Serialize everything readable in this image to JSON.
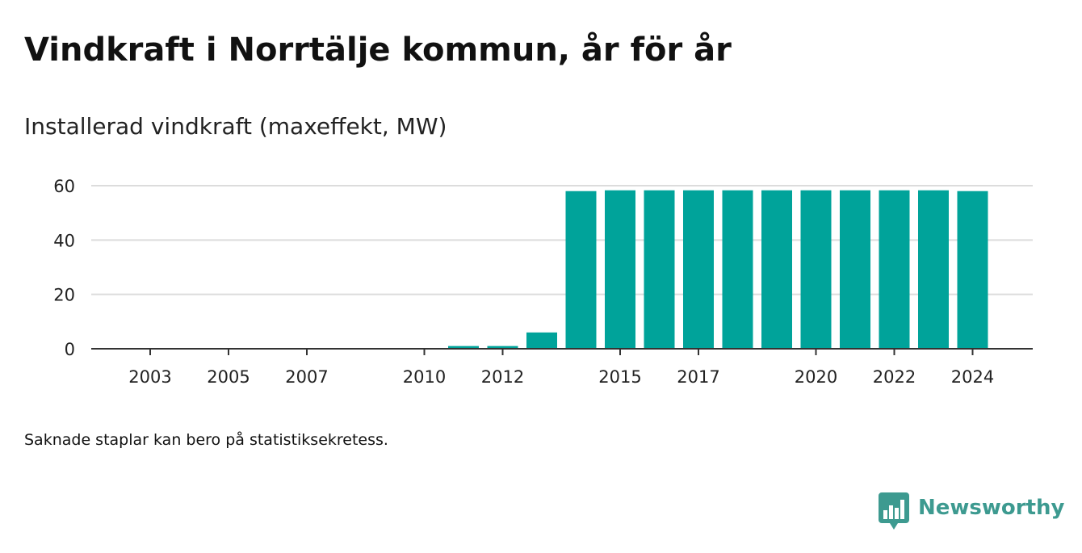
{
  "header": {
    "title": "Vindkraft i Norrtälje kommun, år för år",
    "subtitle": "Installerad vindkraft (maxeffekt, MW)"
  },
  "footnote": "Saknade staplar kan bero på statistiksekretess.",
  "brand": {
    "name": "Newsworthy",
    "color": "#3d9a90",
    "icon": "bar-chart-speech-bubble-icon"
  },
  "colors": {
    "bar": "#00a39a",
    "gridline": "#dcdcdc",
    "axis": "#333333"
  },
  "chart_data": {
    "type": "bar",
    "title": "Vindkraft i Norrtälje kommun, år för år",
    "subtitle": "Installerad vindkraft (maxeffekt, MW)",
    "xlabel": "",
    "ylabel": "",
    "categories": [
      2002,
      2003,
      2004,
      2005,
      2006,
      2007,
      2008,
      2009,
      2010,
      2011,
      2012,
      2013,
      2014,
      2015,
      2016,
      2017,
      2018,
      2019,
      2020,
      2021,
      2022,
      2023,
      2024
    ],
    "values": [
      0,
      0,
      0,
      0,
      0,
      0,
      0,
      0,
      0,
      1,
      1,
      6,
      58,
      58.3,
      58.3,
      58.3,
      58.3,
      58.3,
      58.3,
      58.3,
      58.3,
      58.3,
      58
    ],
    "x_tick_labels": [
      "2003",
      "2005",
      "2007",
      "2010",
      "2012",
      "2015",
      "2017",
      "2020",
      "2022",
      "2024"
    ],
    "y_ticks": [
      0,
      20,
      40,
      60
    ],
    "ylim": [
      0,
      60
    ],
    "grid": true,
    "legend": "none"
  }
}
